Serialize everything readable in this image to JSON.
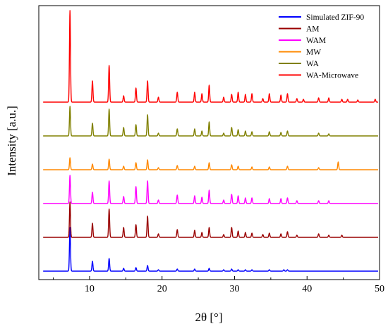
{
  "chart_data": {
    "type": "line",
    "xlabel": "2θ [°]",
    "ylabel": "Intensity [a.u.]",
    "xlim": [
      3,
      50
    ],
    "xticks": [
      10,
      20,
      30,
      40,
      50
    ],
    "y_ticks_shown": false,
    "grid": false,
    "legend_position": "top-right",
    "series": [
      {
        "name": "Simulated ZIF-90",
        "color": "#0000ff",
        "baseline": 0,
        "peaks": [
          [
            7.3,
            62
          ],
          [
            10.4,
            14
          ],
          [
            12.7,
            18
          ],
          [
            14.7,
            4
          ],
          [
            16.4,
            5
          ],
          [
            18.0,
            8
          ],
          [
            19.5,
            2
          ],
          [
            22.1,
            3
          ],
          [
            24.5,
            3
          ],
          [
            26.5,
            4
          ],
          [
            28.5,
            2
          ],
          [
            29.6,
            3
          ],
          [
            30.5,
            2
          ],
          [
            31.5,
            2
          ],
          [
            32.4,
            2
          ],
          [
            34.8,
            2
          ],
          [
            36.8,
            2
          ],
          [
            37.3,
            2
          ]
        ]
      },
      {
        "name": "AM",
        "color": "#990000",
        "baseline": 48,
        "peaks": [
          [
            7.3,
            50
          ],
          [
            10.4,
            20
          ],
          [
            12.7,
            40
          ],
          [
            14.7,
            14
          ],
          [
            16.4,
            18
          ],
          [
            18.0,
            30
          ],
          [
            19.5,
            5
          ],
          [
            22.1,
            11
          ],
          [
            24.5,
            10
          ],
          [
            25.5,
            7
          ],
          [
            26.5,
            14
          ],
          [
            28.5,
            4
          ],
          [
            29.6,
            14
          ],
          [
            30.5,
            9
          ],
          [
            31.5,
            7
          ],
          [
            32.4,
            6
          ],
          [
            33.9,
            4
          ],
          [
            34.8,
            6
          ],
          [
            36.4,
            5
          ],
          [
            37.3,
            8
          ],
          [
            38.6,
            3
          ],
          [
            41.6,
            5
          ],
          [
            43.0,
            3
          ],
          [
            44.8,
            3
          ]
        ]
      },
      {
        "name": "WAM",
        "color": "#ff00ff",
        "baseline": 96,
        "peaks": [
          [
            7.3,
            40
          ],
          [
            10.4,
            16
          ],
          [
            12.7,
            32
          ],
          [
            14.7,
            10
          ],
          [
            16.4,
            24
          ],
          [
            18.0,
            32
          ],
          [
            19.5,
            5
          ],
          [
            22.1,
            12
          ],
          [
            24.5,
            11
          ],
          [
            25.5,
            9
          ],
          [
            26.5,
            19
          ],
          [
            28.5,
            5
          ],
          [
            29.6,
            13
          ],
          [
            30.5,
            11
          ],
          [
            31.5,
            8
          ],
          [
            32.4,
            8
          ],
          [
            34.8,
            7
          ],
          [
            36.4,
            7
          ],
          [
            37.3,
            8
          ],
          [
            38.6,
            4
          ],
          [
            41.6,
            4
          ],
          [
            43.0,
            4
          ]
        ]
      },
      {
        "name": "MW",
        "color": "#ff8800",
        "baseline": 144,
        "peaks": [
          [
            7.3,
            17
          ],
          [
            10.4,
            8
          ],
          [
            12.7,
            15
          ],
          [
            14.7,
            5
          ],
          [
            16.4,
            10
          ],
          [
            18.0,
            14
          ],
          [
            19.5,
            3
          ],
          [
            22.1,
            6
          ],
          [
            24.5,
            5
          ],
          [
            26.5,
            10
          ],
          [
            29.6,
            7
          ],
          [
            30.5,
            5
          ],
          [
            32.4,
            4
          ],
          [
            34.8,
            4
          ],
          [
            37.3,
            5
          ],
          [
            41.6,
            3
          ],
          [
            44.3,
            11
          ]
        ]
      },
      {
        "name": "WA",
        "color": "#808000",
        "baseline": 192,
        "peaks": [
          [
            7.3,
            42
          ],
          [
            10.4,
            18
          ],
          [
            12.7,
            38
          ],
          [
            14.7,
            12
          ],
          [
            16.4,
            16
          ],
          [
            18.0,
            30
          ],
          [
            19.5,
            4
          ],
          [
            22.1,
            10
          ],
          [
            24.5,
            10
          ],
          [
            25.5,
            7
          ],
          [
            26.5,
            20
          ],
          [
            28.5,
            4
          ],
          [
            29.6,
            12
          ],
          [
            30.5,
            9
          ],
          [
            31.5,
            7
          ],
          [
            32.4,
            6
          ],
          [
            34.8,
            6
          ],
          [
            36.4,
            5
          ],
          [
            37.3,
            7
          ],
          [
            41.6,
            4
          ],
          [
            43.0,
            3
          ]
        ]
      },
      {
        "name": "WA-Microwave",
        "color": "#ff0000",
        "baseline": 240,
        "peaks": [
          [
            7.3,
            130
          ],
          [
            10.4,
            30
          ],
          [
            12.7,
            52
          ],
          [
            14.7,
            9
          ],
          [
            16.4,
            20
          ],
          [
            18.0,
            30
          ],
          [
            19.5,
            7
          ],
          [
            22.1,
            14
          ],
          [
            24.5,
            14
          ],
          [
            25.5,
            12
          ],
          [
            26.5,
            24
          ],
          [
            28.5,
            7
          ],
          [
            29.6,
            11
          ],
          [
            30.5,
            14
          ],
          [
            31.5,
            11
          ],
          [
            32.4,
            12
          ],
          [
            33.9,
            5
          ],
          [
            34.8,
            12
          ],
          [
            36.4,
            10
          ],
          [
            37.3,
            12
          ],
          [
            38.6,
            5
          ],
          [
            39.5,
            4
          ],
          [
            41.6,
            6
          ],
          [
            43.0,
            6
          ],
          [
            44.8,
            4
          ],
          [
            45.6,
            4
          ],
          [
            47.0,
            3
          ],
          [
            49.4,
            4
          ]
        ]
      }
    ]
  }
}
